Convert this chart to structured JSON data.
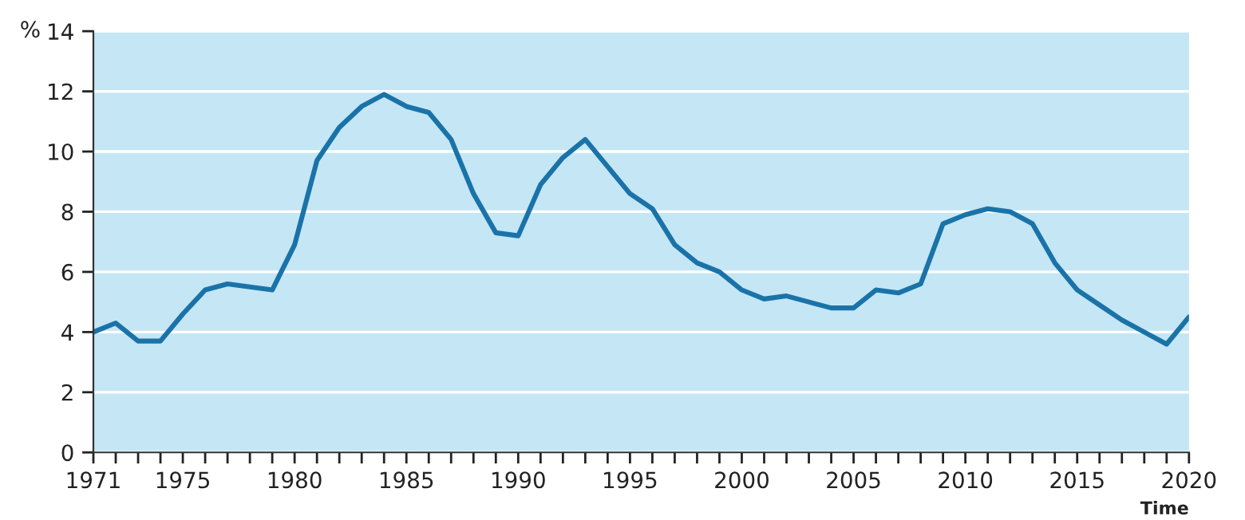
{
  "chart_data": {
    "type": "line",
    "xlabel": "Time",
    "ylabel": "%",
    "x": [
      1971,
      1972,
      1973,
      1974,
      1975,
      1976,
      1977,
      1978,
      1979,
      1980,
      1981,
      1982,
      1983,
      1984,
      1985,
      1986,
      1987,
      1988,
      1989,
      1990,
      1991,
      1992,
      1993,
      1994,
      1995,
      1996,
      1997,
      1998,
      1999,
      2000,
      2001,
      2002,
      2003,
      2004,
      2005,
      2006,
      2007,
      2008,
      2009,
      2010,
      2011,
      2012,
      2013,
      2014,
      2015,
      2016,
      2017,
      2018,
      2019,
      2020
    ],
    "series": [
      {
        "color": "#1a73a8",
        "values": [
          4.0,
          4.3,
          3.7,
          3.7,
          4.6,
          5.4,
          5.6,
          5.5,
          5.4,
          6.9,
          9.7,
          10.8,
          11.5,
          11.9,
          11.5,
          11.3,
          10.4,
          8.6,
          7.3,
          7.2,
          8.9,
          9.8,
          10.4,
          9.5,
          8.6,
          8.1,
          6.9,
          6.3,
          6.0,
          5.4,
          5.1,
          5.2,
          5.0,
          4.8,
          4.8,
          5.4,
          5.3,
          5.6,
          7.6,
          7.9,
          8.1,
          8.0,
          7.6,
          6.3,
          5.4,
          4.9,
          4.4,
          4.0,
          3.6,
          4.5
        ]
      }
    ],
    "xlim": [
      1971,
      2020
    ],
    "ylim": [
      0,
      14
    ],
    "yticks": [
      0,
      2,
      4,
      6,
      8,
      10,
      12,
      14
    ],
    "xticks": [
      1971,
      {
        "value": 1972,
        "label": null
      },
      {
        "value": 1973,
        "label": null
      },
      {
        "value": 1974,
        "label": null
      },
      1975,
      {
        "value": 1976,
        "label": null
      },
      {
        "value": 1977,
        "label": null
      },
      {
        "value": 1978,
        "label": null
      },
      {
        "value": 1979,
        "label": null
      },
      1980,
      {
        "value": 1981,
        "label": null
      },
      {
        "value": 1982,
        "label": null
      },
      {
        "value": 1983,
        "label": null
      },
      {
        "value": 1984,
        "label": null
      },
      1985,
      {
        "value": 1986,
        "label": null
      },
      {
        "value": 1987,
        "label": null
      },
      {
        "value": 1988,
        "label": null
      },
      {
        "value": 1989,
        "label": null
      },
      1990,
      {
        "value": 1991,
        "label": null
      },
      {
        "value": 1992,
        "label": null
      },
      {
        "value": 1993,
        "label": null
      },
      {
        "value": 1994,
        "label": null
      },
      1995,
      {
        "value": 1996,
        "label": null
      },
      {
        "value": 1997,
        "label": null
      },
      {
        "value": 1998,
        "label": null
      },
      {
        "value": 1999,
        "label": null
      },
      2000,
      {
        "value": 2001,
        "label": null
      },
      {
        "value": 2002,
        "label": null
      },
      {
        "value": 2003,
        "label": null
      },
      {
        "value": 2004,
        "label": null
      },
      2005,
      {
        "value": 2006,
        "label": null
      },
      {
        "value": 2007,
        "label": null
      },
      {
        "value": 2008,
        "label": null
      },
      {
        "value": 2009,
        "label": null
      },
      2010,
      {
        "value": 2011,
        "label": null
      },
      {
        "value": 2012,
        "label": null
      },
      {
        "value": 2013,
        "label": null
      },
      {
        "value": 2014,
        "label": null
      },
      2015,
      {
        "value": 2016,
        "label": null
      },
      {
        "value": 2017,
        "label": null
      },
      {
        "value": 2018,
        "label": null
      },
      {
        "value": 2019,
        "label": null
      },
      2020
    ],
    "grid": "y",
    "marker": "none",
    "line_style": "solid"
  }
}
